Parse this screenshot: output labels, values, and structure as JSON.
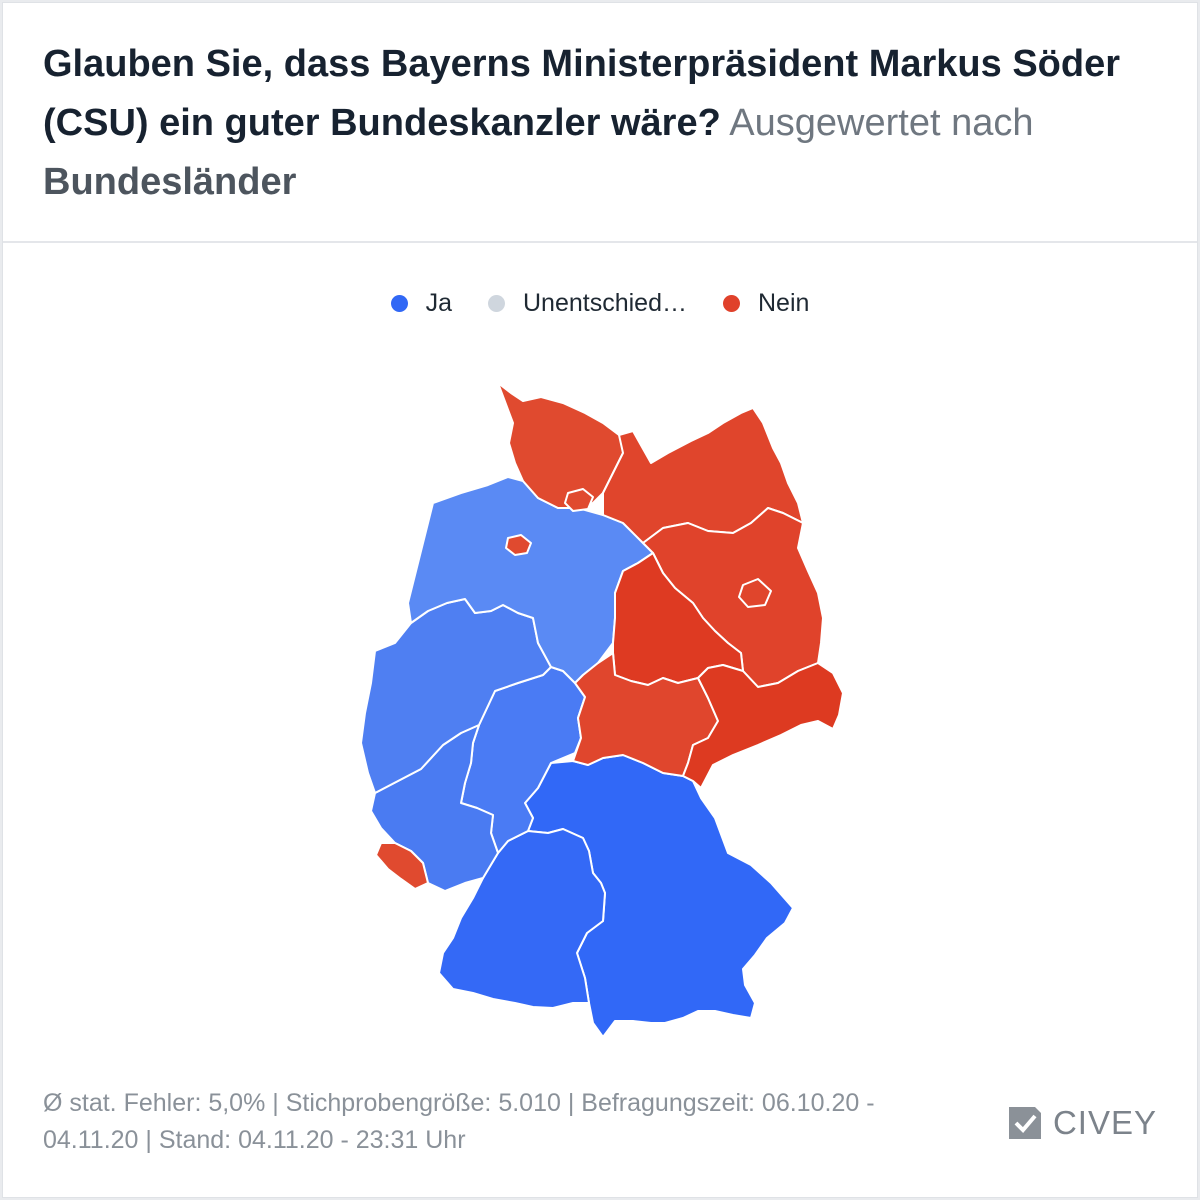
{
  "header": {
    "question": "Glauben Sie, dass Bayerns Ministerpräsident Markus Söder (CSU) ein guter Bundeskanzler wäre?",
    "grouping_prefix": "Ausgewertet nach",
    "grouping_value": "Bundesländer"
  },
  "legend": [
    {
      "label": "Ja",
      "color": "#3168f5"
    },
    {
      "label": "Unentschied…",
      "color": "#cfd6de"
    },
    {
      "label": "Nein",
      "color": "#e0412b"
    }
  ],
  "map_data": {
    "regions": [
      {
        "name": "Schleswig-Holstein",
        "result": "Nein",
        "color": "#e04a2f"
      },
      {
        "name": "Hamburg",
        "result": "Nein",
        "color": "#e04a2f"
      },
      {
        "name": "Mecklenburg-Vorpommern",
        "result": "Nein",
        "color": "#e0452c"
      },
      {
        "name": "Bremen",
        "result": "Nein",
        "color": "#e04a2f"
      },
      {
        "name": "Niedersachsen",
        "result": "Ja",
        "color": "#5a8af4"
      },
      {
        "name": "Brandenburg",
        "result": "Nein",
        "color": "#e0432b"
      },
      {
        "name": "Berlin",
        "result": "Nein",
        "color": "#e0452c"
      },
      {
        "name": "Sachsen-Anhalt",
        "result": "Nein",
        "color": "#de3a22"
      },
      {
        "name": "Nordrhein-Westfalen",
        "result": "Ja",
        "color": "#4f7ff2"
      },
      {
        "name": "Hessen",
        "result": "Ja",
        "color": "#4a7bf4"
      },
      {
        "name": "Thüringen",
        "result": "Nein",
        "color": "#e0462d"
      },
      {
        "name": "Sachsen",
        "result": "Nein",
        "color": "#dd3a21"
      },
      {
        "name": "Rheinland-Pfalz",
        "result": "Ja",
        "color": "#4a7bf2"
      },
      {
        "name": "Saarland",
        "result": "Nein",
        "color": "#e04a2f"
      },
      {
        "name": "Baden-Württemberg",
        "result": "Ja",
        "color": "#3469f6"
      },
      {
        "name": "Bayern",
        "result": "Ja",
        "color": "#3168f7"
      }
    ]
  },
  "footer": {
    "text": "Ø stat. Fehler: 5,0% | Stichprobengröße: 5.010 | Befragungszeit: 06.10.20 - 04.11.20 | Stand: 04.11.20 - 23:31 Uhr"
  },
  "brand": {
    "name": "CIVEY"
  }
}
